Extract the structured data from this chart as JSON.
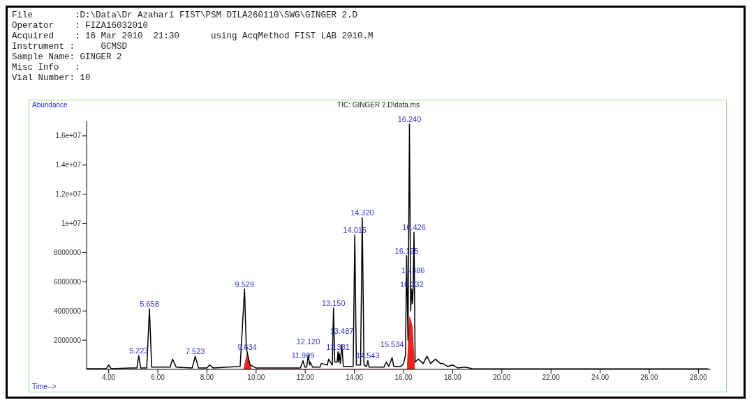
{
  "chart_data": {
    "type": "line",
    "title": "TIC: GINGER 2.D\\data.ms",
    "xlabel": "Time-->",
    "ylabel": "Abundance",
    "annotations": [
      "File        :D:\\Data\\Dr Azahari FIST\\PSM DILA260110\\SWG\\GINGER 2.D",
      "Operator    : FIZA16032010",
      "Acquired    : 16 Mar 2010  21:30      using AcqMethod FIST LAB 2010.M",
      "Instrument :     GCMSD",
      "Sample Name: GINGER 2",
      "Misc Info   :",
      "Vial Number: 10",
      {
        "text": "5.223",
        "x": 5.223,
        "y": 940000
      },
      {
        "text": "5.658",
        "x": 5.658,
        "y": 4160000
      },
      {
        "text": "7.523",
        "x": 7.523,
        "y": 900000
      },
      {
        "text": "9.529",
        "x": 9.529,
        "y": 5500000
      },
      {
        "text": "9.634",
        "x": 9.634,
        "y": 1200000
      },
      {
        "text": "11.909",
        "x": 11.909,
        "y": 600000
      },
      {
        "text": "12.120",
        "x": 12.12,
        "y": 1000000
      },
      {
        "text": "13.150",
        "x": 13.15,
        "y": 4200000
      },
      {
        "text": "13.331",
        "x": 13.331,
        "y": 1200000
      },
      {
        "text": "13.487",
        "x": 13.487,
        "y": 1700000
      },
      {
        "text": "14.015",
        "x": 14.015,
        "y": 9200000
      },
      {
        "text": "14.320",
        "x": 14.32,
        "y": 10400000
      },
      {
        "text": "14.543",
        "x": 14.543,
        "y": 600000
      },
      {
        "text": "15.534",
        "x": 15.534,
        "y": 800000
      },
      {
        "text": "16.125",
        "x": 16.125,
        "y": 7800000
      },
      {
        "text": "16.240",
        "x": 16.24,
        "y": 16800000
      },
      {
        "text": "16.332",
        "x": 16.332,
        "y": 5500000
      },
      {
        "text": "16.386",
        "x": 16.386,
        "y": 5300000
      },
      {
        "text": "16.426",
        "x": 16.426,
        "y": 9400000
      }
    ],
    "xlim": [
      3.1,
      28.5
    ],
    "ylim": [
      0,
      17000000
    ],
    "xticks": [
      {
        "value": 4,
        "label": "4.00"
      },
      {
        "value": 6,
        "label": "6.00"
      },
      {
        "value": 8,
        "label": "8.00"
      },
      {
        "value": 10,
        "label": "10.00"
      },
      {
        "value": 12,
        "label": "12.00"
      },
      {
        "value": 14,
        "label": "14.00"
      },
      {
        "value": 16,
        "label": "16.00"
      },
      {
        "value": 18,
        "label": "18.00"
      },
      {
        "value": 20,
        "label": "20.00"
      },
      {
        "value": 22,
        "label": "22.00"
      },
      {
        "value": 24,
        "label": "24.00"
      },
      {
        "value": 26,
        "label": "26.00"
      },
      {
        "value": 28,
        "label": "28.00"
      }
    ],
    "yticks": [
      2000000,
      4000000,
      6000000,
      8000000,
      {
        "value": 10000000,
        "label": "1e+07"
      },
      {
        "value": 12000000,
        "label": "1.2e+07"
      },
      {
        "value": 14000000,
        "label": "1.4e+07"
      },
      {
        "value": 16000000,
        "label": "1.6e+07"
      }
    ],
    "grid": false,
    "series": [
      {
        "color": "#000000",
        "x": [
          3.1,
          3.9,
          4.0,
          4.1,
          4.9,
          5.15,
          5.223,
          5.3,
          5.55,
          5.658,
          5.75,
          6.5,
          6.6,
          6.75,
          7.4,
          7.523,
          7.65,
          8.0,
          8.1,
          8.25,
          9.35,
          9.529,
          9.6,
          9.634,
          9.75,
          10.0,
          11.8,
          11.909,
          11.98,
          12.06,
          12.12,
          12.18,
          12.198,
          12.3,
          12.6,
          12.65,
          12.9,
          12.95,
          13.1,
          13.15,
          13.2,
          13.3,
          13.331,
          13.36,
          13.385,
          13.43,
          13.487,
          13.55,
          13.95,
          14.015,
          14.08,
          14.25,
          14.32,
          14.39,
          14.5,
          14.543,
          14.6,
          15.2,
          15.3,
          15.4,
          15.534,
          15.6,
          15.9,
          16.0,
          16.08,
          16.125,
          16.18,
          16.24,
          16.29,
          16.332,
          16.36,
          16.386,
          16.426,
          16.47,
          16.6,
          16.8,
          16.95,
          17.1,
          17.3,
          17.5,
          17.6,
          17.8,
          18.0,
          18.2,
          18.5,
          18.8,
          19.2,
          28.4
        ],
        "values": [
          50000,
          50000,
          300000,
          50000,
          100000,
          100000,
          940000,
          100000,
          100000,
          4160000,
          150000,
          150000,
          700000,
          150000,
          100000,
          900000,
          100000,
          100000,
          300000,
          100000,
          200000,
          5500000,
          1500000,
          1200000,
          300000,
          100000,
          100000,
          600000,
          150000,
          150000,
          1000000,
          300000,
          500000,
          150000,
          150000,
          400000,
          300000,
          700000,
          300000,
          4200000,
          500000,
          500000,
          1200000,
          500000,
          1100000,
          400000,
          1700000,
          200000,
          200000,
          9200000,
          300000,
          300000,
          10400000,
          300000,
          200000,
          600000,
          150000,
          150000,
          500000,
          200000,
          800000,
          200000,
          200000,
          400000,
          1000000,
          7800000,
          2000000,
          16800000,
          4000000,
          5500000,
          4500000,
          5300000,
          9400000,
          500000,
          700000,
          400000,
          900000,
          400000,
          700000,
          400000,
          400000,
          200000,
          300000,
          100000,
          150000,
          50000,
          30000,
          30000
        ]
      },
      {
        "type": "area",
        "color": "#e8231f",
        "x": [
          9.5,
          9.634,
          9.8,
          16.15,
          16.24,
          16.35,
          16.45
        ],
        "values": [
          0,
          1100000,
          0,
          0,
          3600000,
          3000000,
          0
        ]
      }
    ]
  }
}
